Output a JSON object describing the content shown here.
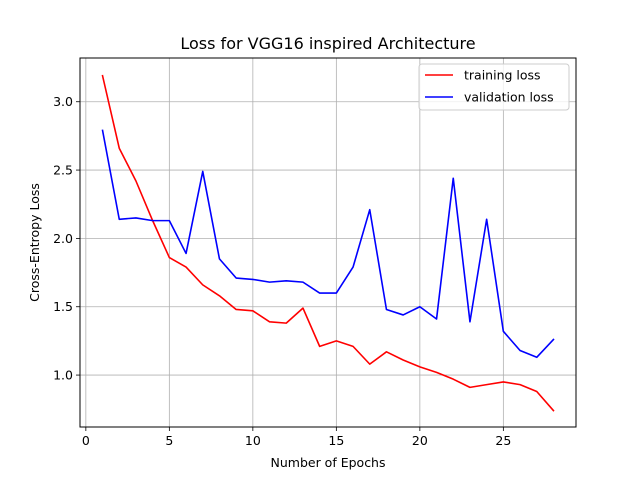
{
  "chart_data": {
    "type": "line",
    "title": "Loss for VGG16 inspired Architecture",
    "xlabel": "Number of Epochs",
    "ylabel": "Cross-Entropy Loss",
    "xlim": [
      -0.35,
      29.35
    ],
    "ylim": [
      0.62,
      3.32
    ],
    "xticks": [
      0,
      5,
      10,
      15,
      20,
      25
    ],
    "xtick_labels": [
      "0",
      "5",
      "10",
      "15",
      "20",
      "25"
    ],
    "yticks": [
      1.0,
      1.5,
      2.0,
      2.5,
      3.0
    ],
    "ytick_labels": [
      "1.0",
      "1.5",
      "2.0",
      "2.5",
      "3.0"
    ],
    "grid": true,
    "legend_position": "upper right",
    "x": [
      1,
      2,
      3,
      4,
      5,
      6,
      7,
      8,
      9,
      10,
      11,
      12,
      13,
      14,
      15,
      16,
      17,
      18,
      19,
      20,
      21,
      22,
      23,
      24,
      25,
      26,
      27,
      28
    ],
    "series": [
      {
        "name": "training loss",
        "color": "#ff0000",
        "values": [
          3.19,
          2.66,
          2.42,
          2.13,
          1.86,
          1.79,
          1.66,
          1.58,
          1.48,
          1.47,
          1.39,
          1.38,
          1.49,
          1.21,
          1.25,
          1.21,
          1.08,
          1.17,
          1.11,
          1.06,
          1.02,
          0.97,
          0.91,
          0.93,
          0.95,
          0.93,
          0.88,
          0.74
        ]
      },
      {
        "name": "validation loss",
        "color": "#0000ff",
        "values": [
          2.79,
          2.14,
          2.15,
          2.13,
          2.13,
          1.89,
          2.49,
          1.85,
          1.71,
          1.7,
          1.68,
          1.69,
          1.68,
          1.6,
          1.6,
          1.79,
          2.21,
          1.48,
          1.44,
          1.5,
          1.41,
          2.44,
          1.39,
          2.14,
          1.32,
          1.18,
          1.13,
          1.26
        ]
      }
    ]
  }
}
